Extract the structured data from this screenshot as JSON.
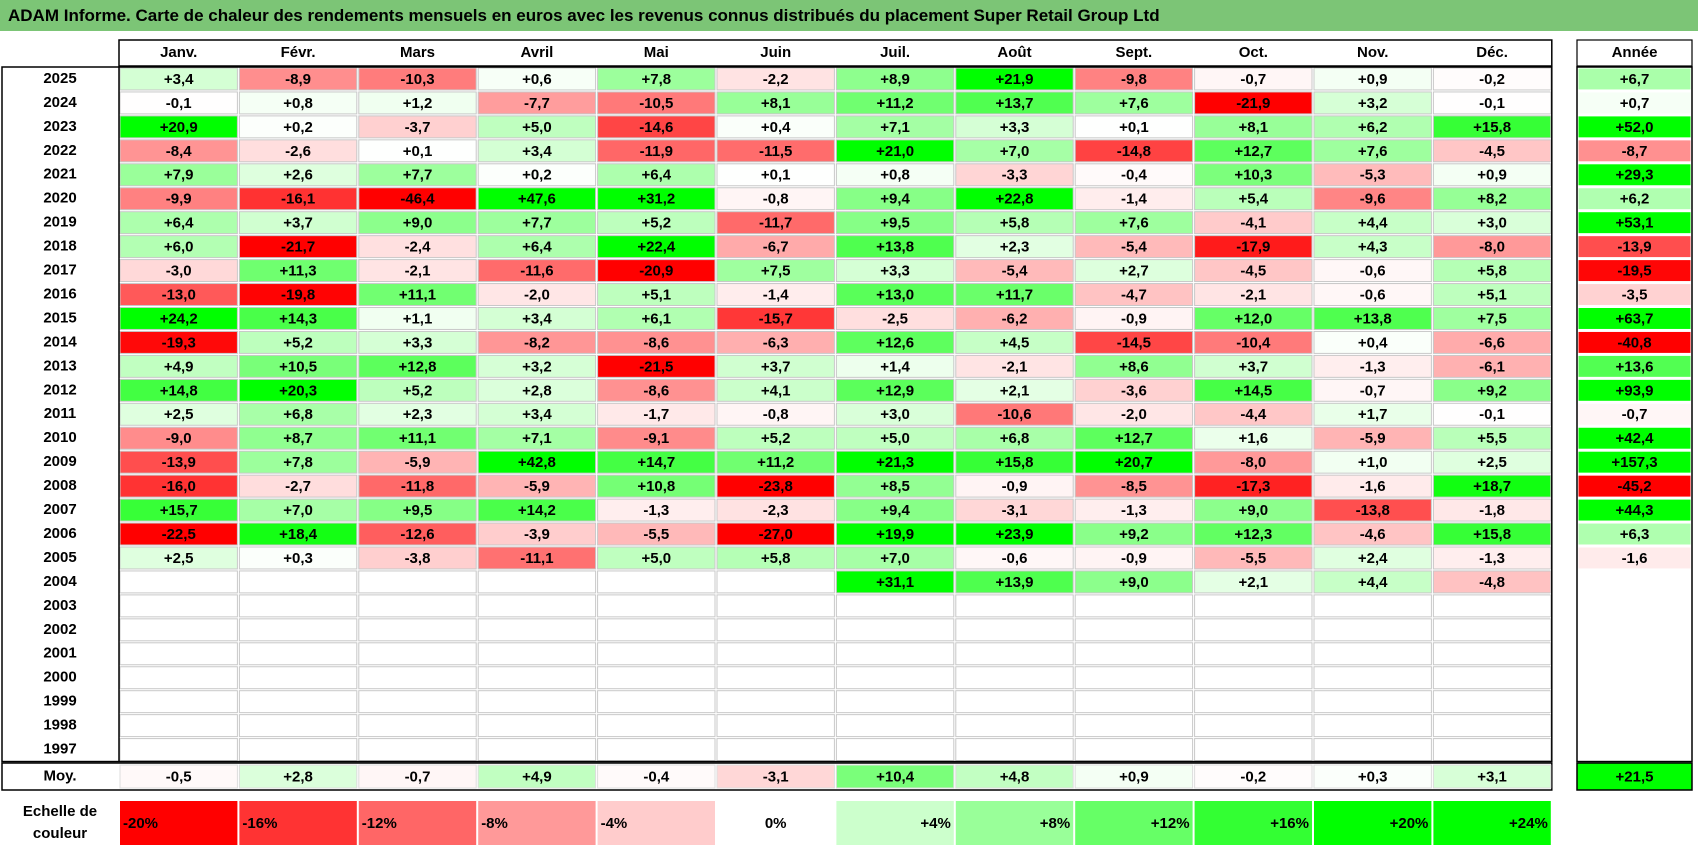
{
  "title": "ADAM Informe. Carte de chaleur des rendements mensuels en euros avec les revenus connus distribués du placement Super Retail Group Ltd",
  "colors": {
    "title_bg": "#7cc576",
    "positive_max": "#00ff00",
    "negative_max": "#ff0000",
    "neutral": "#ffffff"
  },
  "chart_data": {
    "type": "heatmap",
    "title": "ADAM Informe. Carte de chaleur des rendements mensuels en euros avec les revenus connus distribués du placement Super Retail Group Ltd",
    "months": [
      "Janv.",
      "Févr.",
      "Mars",
      "Avril",
      "Mai",
      "Juin",
      "Juil.",
      "Août",
      "Sept.",
      "Oct.",
      "Nov.",
      "Déc."
    ],
    "year_header": "Année",
    "rows": [
      {
        "year": "2025",
        "values": [
          "+3,4",
          "-8,9",
          "-10,3",
          "+0,6",
          "+7,8",
          "-2,2",
          "+8,9",
          "+21,9",
          "-9,8",
          "-0,7",
          "+0,9",
          "-0,2"
        ],
        "annual": "+6,7"
      },
      {
        "year": "2024",
        "values": [
          "-0,1",
          "+0,8",
          "+1,2",
          "-7,7",
          "-10,5",
          "+8,1",
          "+11,2",
          "+13,7",
          "+7,6",
          "-21,9",
          "+3,2",
          "-0,1"
        ],
        "annual": "+0,7"
      },
      {
        "year": "2023",
        "values": [
          "+20,9",
          "+0,2",
          "-3,7",
          "+5,0",
          "-14,6",
          "+0,4",
          "+7,1",
          "+3,3",
          "+0,1",
          "+8,1",
          "+6,2",
          "+15,8"
        ],
        "annual": "+52,0"
      },
      {
        "year": "2022",
        "values": [
          "-8,4",
          "-2,6",
          "+0,1",
          "+3,4",
          "-11,9",
          "-11,5",
          "+21,0",
          "+7,0",
          "-14,8",
          "+12,7",
          "+7,6",
          "-4,5"
        ],
        "annual": "-8,7"
      },
      {
        "year": "2021",
        "values": [
          "+7,9",
          "+2,6",
          "+7,7",
          "+0,2",
          "+6,4",
          "+0,1",
          "+0,8",
          "-3,3",
          "-0,4",
          "+10,3",
          "-5,3",
          "+0,9"
        ],
        "annual": "+29,3"
      },
      {
        "year": "2020",
        "values": [
          "-9,9",
          "-16,1",
          "-46,4",
          "+47,6",
          "+31,2",
          "-0,8",
          "+9,4",
          "+22,8",
          "-1,4",
          "+5,4",
          "-9,6",
          "+8,2"
        ],
        "annual": "+6,2"
      },
      {
        "year": "2019",
        "values": [
          "+6,4",
          "+3,7",
          "+9,0",
          "+7,7",
          "+5,2",
          "-11,7",
          "+9,5",
          "+5,8",
          "+7,6",
          "-4,1",
          "+4,4",
          "+3,0"
        ],
        "annual": "+53,1"
      },
      {
        "year": "2018",
        "values": [
          "+6,0",
          "-21,7",
          "-2,4",
          "+6,4",
          "+22,4",
          "-6,7",
          "+13,8",
          "+2,3",
          "-5,4",
          "-17,9",
          "+4,3",
          "-8,0"
        ],
        "annual": "-13,9"
      },
      {
        "year": "2017",
        "values": [
          "-3,0",
          "+11,3",
          "-2,1",
          "-11,6",
          "-20,9",
          "+7,5",
          "+3,3",
          "-5,4",
          "+2,7",
          "-4,5",
          "-0,6",
          "+5,8"
        ],
        "annual": "-19,5"
      },
      {
        "year": "2016",
        "values": [
          "-13,0",
          "-19,8",
          "+11,1",
          "-2,0",
          "+5,1",
          "-1,4",
          "+13,0",
          "+11,7",
          "-4,7",
          "-2,1",
          "-0,6",
          "+5,1"
        ],
        "annual": "-3,5"
      },
      {
        "year": "2015",
        "values": [
          "+24,2",
          "+14,3",
          "+1,1",
          "+3,4",
          "+6,1",
          "-15,7",
          "-2,5",
          "-6,2",
          "-0,9",
          "+12,0",
          "+13,8",
          "+7,5"
        ],
        "annual": "+63,7"
      },
      {
        "year": "2014",
        "values": [
          "-19,3",
          "+5,2",
          "+3,3",
          "-8,2",
          "-8,6",
          "-6,3",
          "+12,6",
          "+4,5",
          "-14,5",
          "-10,4",
          "+0,4",
          "-6,6"
        ],
        "annual": "-40,8"
      },
      {
        "year": "2013",
        "values": [
          "+4,9",
          "+10,5",
          "+12,8",
          "+3,2",
          "-21,5",
          "+3,7",
          "+1,4",
          "-2,1",
          "+8,6",
          "+3,7",
          "-1,3",
          "-6,1"
        ],
        "annual": "+13,6"
      },
      {
        "year": "2012",
        "values": [
          "+14,8",
          "+20,3",
          "+5,2",
          "+2,8",
          "-8,6",
          "+4,1",
          "+12,9",
          "+2,1",
          "-3,6",
          "+14,5",
          "-0,7",
          "+9,2"
        ],
        "annual": "+93,9"
      },
      {
        "year": "2011",
        "values": [
          "+2,5",
          "+6,8",
          "+2,3",
          "+3,4",
          "-1,7",
          "-0,8",
          "+3,0",
          "-10,6",
          "-2,0",
          "-4,4",
          "+1,7",
          "-0,1"
        ],
        "annual": "-0,7"
      },
      {
        "year": "2010",
        "values": [
          "-9,0",
          "+8,7",
          "+11,1",
          "+7,1",
          "-9,1",
          "+5,2",
          "+5,0",
          "+6,8",
          "+12,7",
          "+1,6",
          "-5,9",
          "+5,5"
        ],
        "annual": "+42,4"
      },
      {
        "year": "2009",
        "values": [
          "-13,9",
          "+7,8",
          "-5,9",
          "+42,8",
          "+14,7",
          "+11,2",
          "+21,3",
          "+15,8",
          "+20,7",
          "-8,0",
          "+1,0",
          "+2,5"
        ],
        "annual": "+157,3"
      },
      {
        "year": "2008",
        "values": [
          "-16,0",
          "-2,7",
          "-11,8",
          "-5,9",
          "+10,8",
          "-23,8",
          "+8,5",
          "-0,9",
          "-8,5",
          "-17,3",
          "-1,6",
          "+18,7"
        ],
        "annual": "-45,2"
      },
      {
        "year": "2007",
        "values": [
          "+15,7",
          "+7,0",
          "+9,5",
          "+14,2",
          "-1,3",
          "-2,3",
          "+9,4",
          "-3,1",
          "-1,3",
          "+9,0",
          "-13,8",
          "-1,8"
        ],
        "annual": "+44,3"
      },
      {
        "year": "2006",
        "values": [
          "-22,5",
          "+18,4",
          "-12,6",
          "-3,9",
          "-5,5",
          "-27,0",
          "+19,9",
          "+23,9",
          "+9,2",
          "+12,3",
          "-4,6",
          "+15,8"
        ],
        "annual": "+6,3"
      },
      {
        "year": "2005",
        "values": [
          "+2,5",
          "+0,3",
          "-3,8",
          "-11,1",
          "+5,0",
          "+5,8",
          "+7,0",
          "-0,6",
          "-0,9",
          "-5,5",
          "+2,4",
          "-1,3"
        ],
        "annual": "-1,6"
      },
      {
        "year": "2004",
        "values": [
          "",
          "",
          "",
          "",
          "",
          "",
          "+31,1",
          "+13,9",
          "+9,0",
          "+2,1",
          "+4,4",
          "-4,8"
        ],
        "annual": ""
      },
      {
        "year": "2003",
        "values": [
          "",
          "",
          "",
          "",
          "",
          "",
          "",
          "",
          "",
          "",
          "",
          ""
        ],
        "annual": ""
      },
      {
        "year": "2002",
        "values": [
          "",
          "",
          "",
          "",
          "",
          "",
          "",
          "",
          "",
          "",
          "",
          ""
        ],
        "annual": ""
      },
      {
        "year": "2001",
        "values": [
          "",
          "",
          "",
          "",
          "",
          "",
          "",
          "",
          "",
          "",
          "",
          ""
        ],
        "annual": ""
      },
      {
        "year": "2000",
        "values": [
          "",
          "",
          "",
          "",
          "",
          "",
          "",
          "",
          "",
          "",
          "",
          ""
        ],
        "annual": ""
      },
      {
        "year": "1999",
        "values": [
          "",
          "",
          "",
          "",
          "",
          "",
          "",
          "",
          "",
          "",
          "",
          ""
        ],
        "annual": ""
      },
      {
        "year": "1998",
        "values": [
          "",
          "",
          "",
          "",
          "",
          "",
          "",
          "",
          "",
          "",
          "",
          ""
        ],
        "annual": ""
      },
      {
        "year": "1997",
        "values": [
          "",
          "",
          "",
          "",
          "",
          "",
          "",
          "",
          "",
          "",
          "",
          ""
        ],
        "annual": ""
      }
    ],
    "average": {
      "label": "Moy.",
      "values": [
        "-0,5",
        "+2,8",
        "-0,7",
        "+4,9",
        "-0,4",
        "-3,1",
        "+10,4",
        "+4,8",
        "+0,9",
        "-0,2",
        "+0,3",
        "+3,1"
      ],
      "annual": "+21,5"
    },
    "color_scale": {
      "label_line1": "Echelle de",
      "label_line2": "couleur",
      "steps": [
        "-20%",
        "-16%",
        "-12%",
        "-8%",
        "-4%",
        "0%",
        "+4%",
        "+8%",
        "+12%",
        "+16%",
        "+20%",
        "+24%"
      ]
    }
  }
}
